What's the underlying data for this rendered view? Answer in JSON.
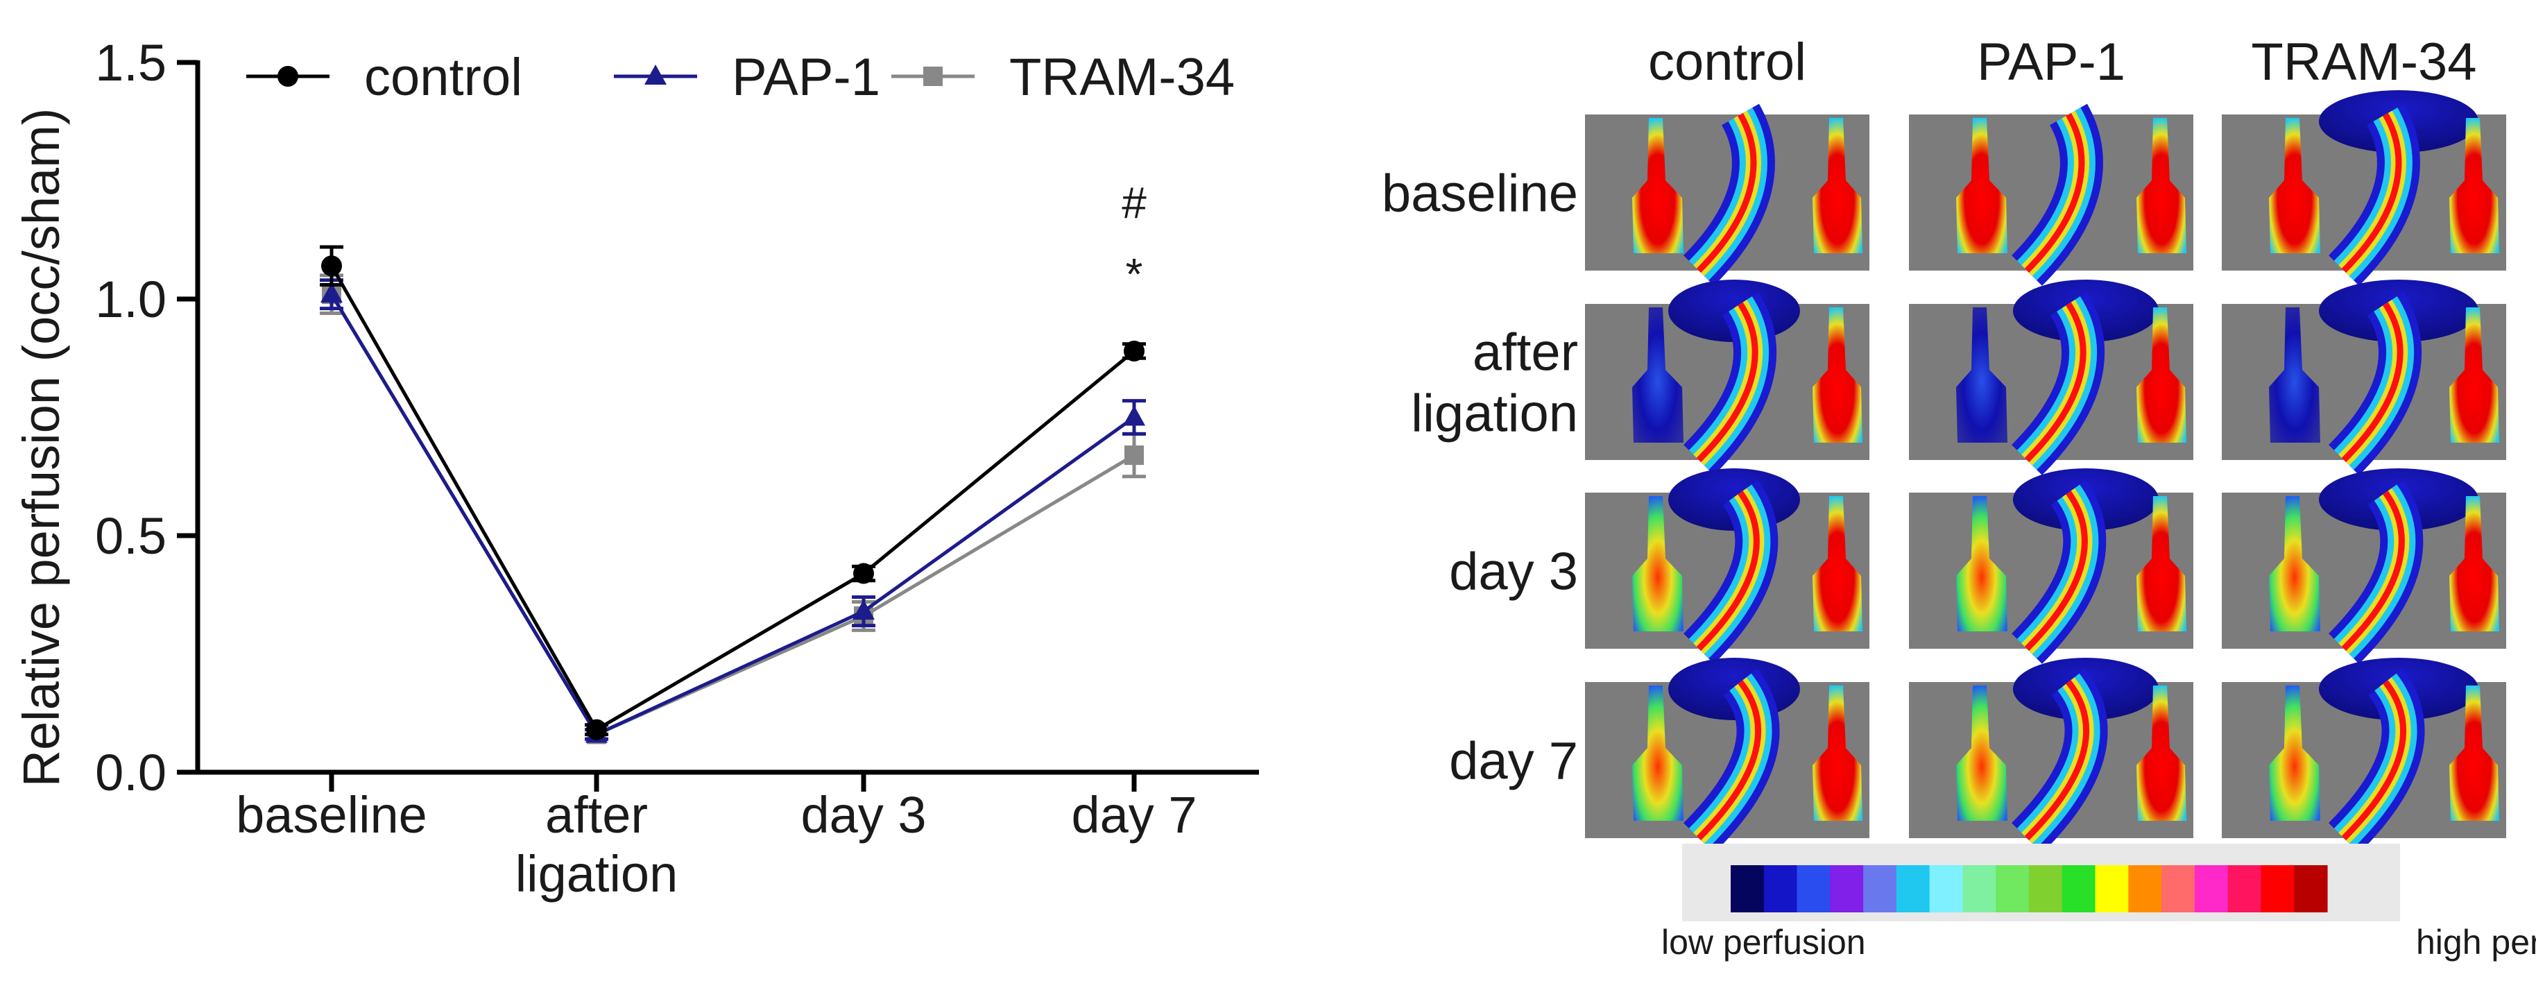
{
  "chart_data": {
    "type": "line",
    "categories": [
      "baseline",
      "after ligation",
      "day 3",
      "day 7"
    ],
    "category_labels": [
      [
        "baseline"
      ],
      [
        "after",
        "ligation"
      ],
      [
        "day 3"
      ],
      [
        "day 7"
      ]
    ],
    "ylabel": "Relative perfusion (occ/sham)",
    "ylim": [
      0,
      1.5
    ],
    "yticks": [
      "0.0",
      "0.5",
      "1.0",
      "1.5"
    ],
    "ytick_values": [
      0,
      0.5,
      1.0,
      1.5
    ],
    "series": [
      {
        "name": "control",
        "color": "#000000",
        "marker": "circle",
        "values": [
          1.07,
          0.09,
          0.42,
          0.89
        ],
        "errors": [
          0.04,
          0.01,
          0.015,
          0.015
        ]
      },
      {
        "name": "PAP-1",
        "color": "#1c1c8c",
        "marker": "triangle",
        "values": [
          1.01,
          0.08,
          0.34,
          0.75
        ],
        "errors": [
          0.03,
          0.01,
          0.03,
          0.035
        ]
      },
      {
        "name": "TRAM-34",
        "color": "#888888",
        "marker": "square",
        "values": [
          1.01,
          0.08,
          0.33,
          0.67
        ],
        "errors": [
          0.04,
          0.01,
          0.03,
          0.045
        ]
      }
    ],
    "annotations": [
      {
        "text": "#",
        "category": "day 7",
        "level": 1.2
      },
      {
        "text": "*",
        "category": "day 7",
        "level": 1.05
      }
    ],
    "legend_position": "top"
  },
  "image_panel": {
    "columns": [
      "control",
      "PAP-1",
      "TRAM-34"
    ],
    "rows": [
      [
        "baseline"
      ],
      [
        "after",
        "ligation"
      ],
      [
        "day 3"
      ],
      [
        "day 7"
      ]
    ],
    "scale": {
      "low_label": "low perfusion",
      "high_label": "high perfusion",
      "colors": [
        "#05055e",
        "#1515c8",
        "#2a4df0",
        "#8020e8",
        "#6a78ee",
        "#20c8f0",
        "#7ff0ff",
        "#7ff0a0",
        "#70e860",
        "#80d030",
        "#28e028",
        "#ffff00",
        "#ff8c00",
        "#ff6a6a",
        "#ff28c8",
        "#ff1460",
        "#ff0000",
        "#b80000"
      ]
    }
  }
}
